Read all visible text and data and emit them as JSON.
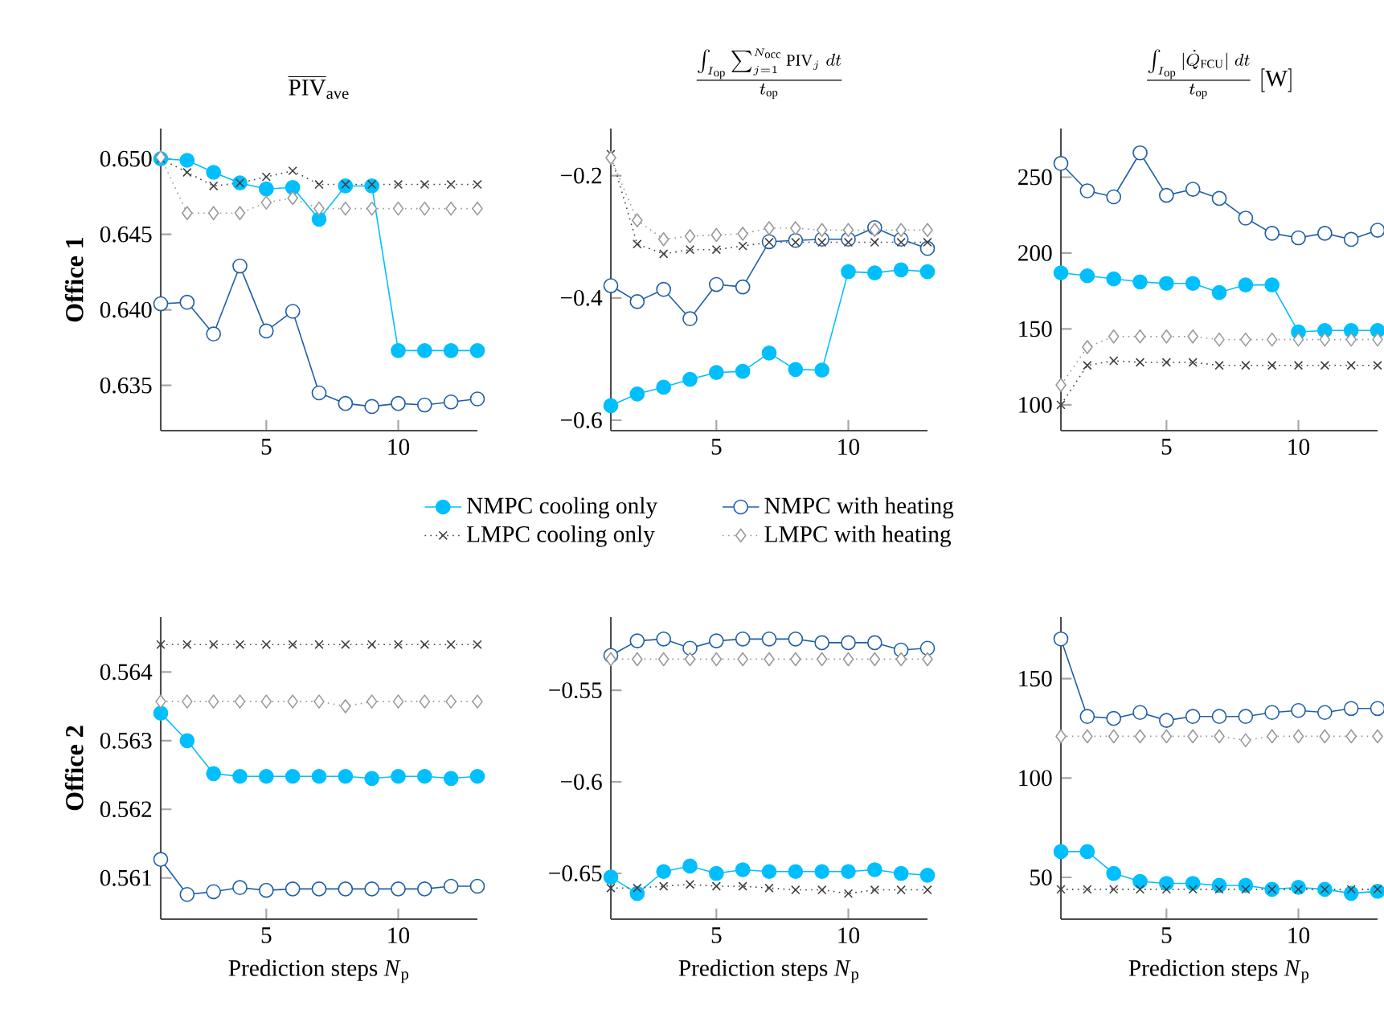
{
  "chart_data": [
    {
      "type": "line",
      "title": "\\overline{\\mathrm{PIV}}_{\\mathrm{ave}}",
      "ylabel": "Office 1",
      "x": [
        1,
        2,
        3,
        4,
        5,
        6,
        7,
        8,
        9,
        10,
        11,
        12,
        13
      ],
      "xlim": [
        1,
        13
      ],
      "xticks": [
        5,
        10
      ],
      "ylim": [
        0.632,
        0.652
      ],
      "yticks": [
        {
          "value": 0.635,
          "label": "0.635"
        },
        {
          "value": 0.64,
          "label": "0.640"
        },
        {
          "value": 0.645,
          "label": "0.645"
        },
        {
          "value": 0.65,
          "label": "0.650"
        }
      ],
      "legend": "bottom",
      "grid": false,
      "series": [
        {
          "name": "NMPC cooling only",
          "color": "#00bfff",
          "marker": "circle",
          "line_style": "solid",
          "values": [
            0.65,
            0.6499,
            0.6491,
            0.6484,
            0.648,
            0.6481,
            0.646,
            0.6482,
            0.6482,
            0.6373,
            0.6373,
            0.6373,
            0.6373
          ]
        },
        {
          "name": "NMPC with heating",
          "color": "#1f5fa8",
          "marker": "circle",
          "line_style": "solid",
          "values": [
            0.6404,
            0.6405,
            0.6384,
            0.6429,
            0.6386,
            0.6399,
            0.6345,
            0.6338,
            0.6336,
            0.6338,
            0.6337,
            0.6339,
            0.6341
          ]
        },
        {
          "name": "LMPC cooling only",
          "color": "#404040",
          "marker": "cross",
          "line_style": "dotted",
          "values": [
            0.65,
            0.6491,
            0.6482,
            0.6484,
            0.6488,
            0.6492,
            0.6483,
            0.6483,
            0.6483,
            0.6483,
            0.6483,
            0.6483,
            0.6483
          ]
        },
        {
          "name": "LMPC with heating",
          "color": "#999999",
          "marker": "diamond",
          "line_style": "dotted",
          "values": [
            0.6501,
            0.6464,
            0.6464,
            0.6464,
            0.6471,
            0.6474,
            0.6467,
            0.6467,
            0.6467,
            0.6467,
            0.6467,
            0.6467,
            0.6467
          ]
        }
      ]
    },
    {
      "type": "line",
      "title": "\\frac{\\int_{I_{\\mathrm{op}}} \\sum_{j=1}^{N_{\\mathrm{occ}}} \\mathrm{PIV}_j\\;dt}{t_{\\mathrm{op}}}",
      "x": [
        1,
        2,
        3,
        4,
        5,
        6,
        7,
        8,
        9,
        10,
        11,
        12,
        13
      ],
      "xlim": [
        1,
        13
      ],
      "xticks": [
        5,
        10
      ],
      "ylim": [
        -0.617,
        -0.123
      ],
      "yticks": [
        {
          "value": -0.6,
          "label": "−0.6"
        },
        {
          "value": -0.4,
          "label": "−0.4"
        },
        {
          "value": -0.2,
          "label": "−0.2"
        }
      ],
      "grid": false,
      "series": [
        {
          "color": "#00bfff",
          "marker": "circle",
          "line_style": "solid",
          "values": [
            -0.576,
            -0.557,
            -0.546,
            -0.533,
            -0.522,
            -0.52,
            -0.49,
            -0.517,
            -0.518,
            -0.357,
            -0.359,
            -0.354,
            -0.357
          ]
        },
        {
          "color": "#1f5fa8",
          "marker": "circle",
          "line_style": "solid",
          "values": [
            -0.38,
            -0.406,
            -0.386,
            -0.434,
            -0.378,
            -0.382,
            -0.308,
            -0.306,
            -0.304,
            -0.304,
            -0.285,
            -0.304,
            -0.319
          ]
        },
        {
          "color": "#404040",
          "marker": "cross",
          "line_style": "dotted",
          "values": [
            -0.165,
            -0.312,
            -0.328,
            -0.321,
            -0.321,
            -0.315,
            -0.309,
            -0.309,
            -0.309,
            -0.309,
            -0.309,
            -0.309,
            -0.309
          ]
        },
        {
          "color": "#999999",
          "marker": "diamond",
          "line_style": "dotted",
          "values": [
            -0.171,
            -0.273,
            -0.304,
            -0.299,
            -0.297,
            -0.295,
            -0.286,
            -0.286,
            -0.289,
            -0.289,
            -0.289,
            -0.289,
            -0.289
          ]
        }
      ]
    },
    {
      "type": "line",
      "title": "\\frac{\\int_{I_{\\mathrm{op}}} |\\dot{Q}_{\\mathrm{FCU}}|\\;dt}{t_{\\mathrm{op}}}\\ [\\mathrm{W}]",
      "x": [
        1,
        2,
        3,
        4,
        5,
        6,
        7,
        8,
        9,
        10,
        11,
        12,
        13
      ],
      "xlim": [
        1,
        13
      ],
      "xticks": [
        5,
        10
      ],
      "ylim": [
        83,
        282
      ],
      "yticks": [
        100,
        150,
        200,
        250
      ],
      "grid": false,
      "series": [
        {
          "color": "#00bfff",
          "marker": "circle",
          "line_style": "solid",
          "values": [
            187,
            185,
            183,
            181,
            180,
            180,
            174,
            179,
            179,
            148,
            149,
            149,
            149
          ]
        },
        {
          "color": "#1f5fa8",
          "marker": "circle",
          "line_style": "solid",
          "values": [
            259,
            241,
            237,
            266,
            238,
            242,
            236,
            223,
            213,
            210,
            213,
            209,
            215
          ]
        },
        {
          "color": "#404040",
          "marker": "cross",
          "line_style": "dotted",
          "values": [
            100,
            126,
            129,
            128,
            128,
            128,
            126,
            126,
            126,
            126,
            126,
            126,
            126
          ]
        },
        {
          "color": "#999999",
          "marker": "diamond",
          "line_style": "dotted",
          "values": [
            113,
            138,
            145,
            145,
            145,
            145,
            143,
            143,
            143,
            143,
            143,
            143,
            143
          ]
        }
      ]
    },
    {
      "type": "line",
      "ylabel": "Office 2",
      "xlabel": "Prediction steps *N*$_{p}$",
      "x": [
        1,
        2,
        3,
        4,
        5,
        6,
        7,
        8,
        9,
        10,
        11,
        12,
        13
      ],
      "xlim": [
        1,
        13
      ],
      "xticks": [
        5,
        10
      ],
      "ylim": [
        0.5604,
        0.5648
      ],
      "yticks": [
        0.561,
        0.562,
        0.563,
        0.564
      ],
      "grid": false,
      "series": [
        {
          "color": "#00bfff",
          "marker": "circle",
          "line_style": "solid",
          "values": [
            0.5634,
            0.563,
            0.56252,
            0.56248,
            0.56248,
            0.56248,
            0.56248,
            0.56248,
            0.56245,
            0.56248,
            0.56248,
            0.56245,
            0.56248
          ]
        },
        {
          "color": "#1f5fa8",
          "marker": "circle",
          "line_style": "solid",
          "values": [
            0.56127,
            0.56076,
            0.5608,
            0.56086,
            0.56082,
            0.56084,
            0.56084,
            0.56084,
            0.56084,
            0.56084,
            0.56084,
            0.56088,
            0.56088
          ]
        },
        {
          "color": "#404040",
          "marker": "cross",
          "line_style": "dotted",
          "values": [
            0.5644,
            0.5644,
            0.5644,
            0.5644,
            0.5644,
            0.5644,
            0.5644,
            0.5644,
            0.5644,
            0.5644,
            0.5644,
            0.5644,
            0.5644
          ]
        },
        {
          "color": "#999999",
          "marker": "diamond",
          "line_style": "dotted",
          "values": [
            0.56357,
            0.56357,
            0.56357,
            0.56357,
            0.56357,
            0.56357,
            0.56357,
            0.5635,
            0.56357,
            0.56357,
            0.56357,
            0.56357,
            0.56357
          ]
        }
      ]
    },
    {
      "type": "line",
      "xlabel": "Prediction steps *N*$_{p}$",
      "x": [
        1,
        2,
        3,
        4,
        5,
        6,
        7,
        8,
        9,
        10,
        11,
        12,
        13
      ],
      "xlim": [
        1,
        13
      ],
      "xticks": [
        5,
        10
      ],
      "ylim": [
        -0.675,
        -0.51
      ],
      "yticks": [
        {
          "value": -0.65,
          "label": "−0.65"
        },
        {
          "value": -0.6,
          "label": "−0.6"
        },
        {
          "value": -0.55,
          "label": "−0.55"
        }
      ],
      "grid": false,
      "series": [
        {
          "color": "#00bfff",
          "marker": "circle",
          "line_style": "solid",
          "values": [
            -0.652,
            -0.661,
            -0.649,
            -0.646,
            -0.65,
            -0.648,
            -0.649,
            -0.649,
            -0.649,
            -0.649,
            -0.648,
            -0.65,
            -0.651
          ]
        },
        {
          "color": "#1f5fa8",
          "marker": "circle",
          "line_style": "solid",
          "values": [
            -0.531,
            -0.523,
            -0.522,
            -0.527,
            -0.523,
            -0.522,
            -0.522,
            -0.522,
            -0.524,
            -0.524,
            -0.524,
            -0.528,
            -0.527
          ]
        },
        {
          "color": "#404040",
          "marker": "cross",
          "line_style": "dotted",
          "values": [
            -0.658,
            -0.658,
            -0.657,
            -0.656,
            -0.657,
            -0.657,
            -0.658,
            -0.659,
            -0.659,
            -0.661,
            -0.659,
            -0.659,
            -0.659
          ]
        },
        {
          "color": "#999999",
          "marker": "diamond",
          "line_style": "dotted",
          "values": [
            -0.533,
            -0.533,
            -0.533,
            -0.533,
            -0.533,
            -0.533,
            -0.533,
            -0.533,
            -0.533,
            -0.533,
            -0.533,
            -0.533,
            -0.533
          ]
        }
      ]
    },
    {
      "type": "line",
      "xlabel": "Prediction steps *N*$_{p}$",
      "x": [
        1,
        2,
        3,
        4,
        5,
        6,
        7,
        8,
        9,
        10,
        11,
        12,
        13
      ],
      "xlim": [
        1,
        13
      ],
      "xticks": [
        5,
        10
      ],
      "ylim": [
        29,
        181
      ],
      "yticks": [
        50,
        100,
        150
      ],
      "grid": false,
      "series": [
        {
          "color": "#00bfff",
          "marker": "circle",
          "line_style": "solid",
          "values": [
            63,
            63,
            52,
            48,
            47,
            47,
            46,
            46,
            44,
            45,
            44,
            42,
            43
          ]
        },
        {
          "color": "#1f5fa8",
          "marker": "circle",
          "line_style": "solid",
          "values": [
            170,
            131,
            130,
            133,
            129,
            131,
            131,
            131,
            133,
            134,
            133,
            135,
            135
          ]
        },
        {
          "color": "#404040",
          "marker": "cross",
          "line_style": "dotted",
          "values": [
            44,
            44,
            44,
            44,
            44,
            44,
            44,
            44,
            44,
            44,
            44,
            44,
            44
          ]
        },
        {
          "color": "#999999",
          "marker": "diamond",
          "line_style": "dotted",
          "values": [
            121,
            121,
            121,
            121,
            121,
            121,
            121,
            119,
            121,
            121,
            121,
            121,
            121
          ]
        }
      ]
    }
  ]
}
